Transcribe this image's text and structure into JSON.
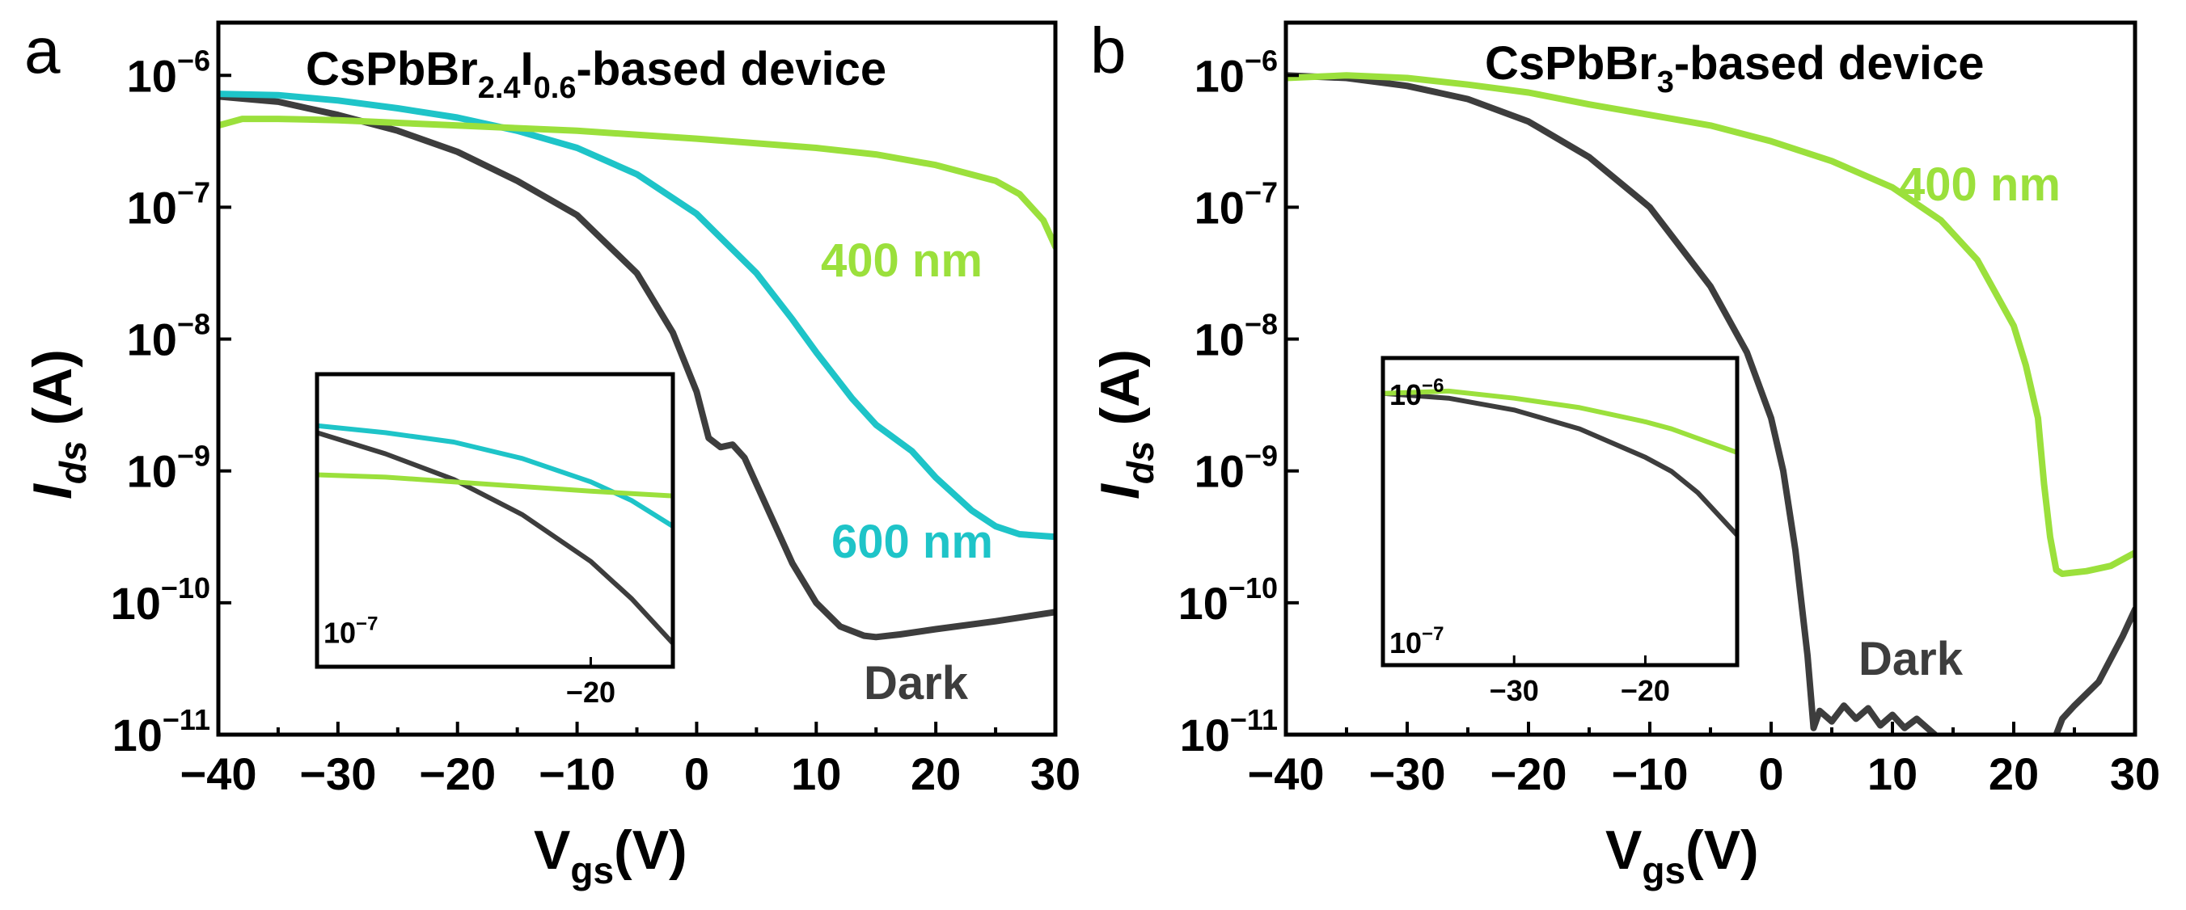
{
  "chart_data": [
    {
      "panel": "a",
      "type": "line",
      "title_main": "CsPbBr",
      "title_sub1": "2.4",
      "title_mid": "I",
      "title_sub2": "0.6",
      "title_tail": "-based device",
      "xlabel_main": "V",
      "xlabel_sub": "gs",
      "xlabel_tail": "(V)",
      "ylabel_main": "I",
      "ylabel_sub": "ds",
      "ylabel_tail": " (A)",
      "xlim": [
        -40,
        30
      ],
      "ylim_log10": [
        -11,
        -5.6
      ],
      "x_ticks": [
        "−40",
        "−30",
        "−20",
        "−10",
        "0",
        "10",
        "20",
        "30"
      ],
      "y_ticks": [
        "10",
        "10",
        "10",
        "10",
        "10",
        "10"
      ],
      "y_tick_exps": [
        "−6",
        "−7",
        "−8",
        "−9",
        "−10",
        "−11"
      ],
      "series": [
        {
          "name": "Dark",
          "label": "Dark",
          "color": "#3d3d3d",
          "x": [
            -40,
            -35,
            -30,
            -25,
            -20,
            -15,
            -10,
            -5,
            -2,
            0,
            1,
            2,
            3,
            4,
            6,
            8,
            10,
            12,
            14,
            15,
            17,
            20,
            25,
            30
          ],
          "log10y": [
            -6.16,
            -6.2,
            -6.3,
            -6.42,
            -6.58,
            -6.8,
            -7.06,
            -7.5,
            -7.95,
            -8.4,
            -8.75,
            -8.82,
            -8.8,
            -8.9,
            -9.3,
            -9.7,
            -10.0,
            -10.18,
            -10.25,
            -10.26,
            -10.24,
            -10.2,
            -10.14,
            -10.07
          ]
        },
        {
          "name": "600 nm",
          "label": "600 nm",
          "color": "#1ec4c8",
          "x": [
            -40,
            -35,
            -30,
            -25,
            -20,
            -15,
            -10,
            -5,
            0,
            5,
            8,
            10,
            13,
            15,
            18,
            20,
            23,
            25,
            27,
            30
          ],
          "log10y": [
            -6.14,
            -6.15,
            -6.19,
            -6.25,
            -6.32,
            -6.42,
            -6.55,
            -6.75,
            -7.05,
            -7.5,
            -7.85,
            -8.1,
            -8.45,
            -8.65,
            -8.85,
            -9.05,
            -9.3,
            -9.42,
            -9.48,
            -9.5
          ]
        },
        {
          "name": "400 nm",
          "label": "400 nm",
          "color": "#9be03c",
          "x": [
            -40,
            -38,
            -35,
            -30,
            -20,
            -10,
            0,
            10,
            15,
            20,
            25,
            27,
            29,
            30
          ],
          "log10y": [
            -6.38,
            -6.33,
            -6.33,
            -6.34,
            -6.38,
            -6.42,
            -6.48,
            -6.55,
            -6.6,
            -6.68,
            -6.8,
            -6.9,
            -7.1,
            -7.3
          ]
        }
      ],
      "inset": {
        "xlim": [
          -40,
          -14
        ],
        "ylim_log10": [
          -7.15,
          -5.9
        ],
        "x_ticks": [
          "−20"
        ],
        "y_ticks": [
          "10"
        ],
        "y_tick_exps": [
          "−7"
        ],
        "series": [
          {
            "name": "Dark",
            "x": [
              -40,
              -35,
              -30,
              -25,
              -20,
              -17,
              -14
            ],
            "log10y": [
              -6.15,
              -6.24,
              -6.35,
              -6.5,
              -6.7,
              -6.86,
              -7.05
            ]
          },
          {
            "name": "600 nm",
            "x": [
              -40,
              -35,
              -30,
              -25,
              -20,
              -17,
              -14
            ],
            "log10y": [
              -6.12,
              -6.15,
              -6.19,
              -6.26,
              -6.36,
              -6.44,
              -6.55
            ]
          },
          {
            "name": "400 nm",
            "x": [
              -40,
              -35,
              -30,
              -25,
              -20,
              -17,
              -14
            ],
            "log10y": [
              -6.33,
              -6.34,
              -6.36,
              -6.38,
              -6.4,
              -6.41,
              -6.42
            ]
          }
        ]
      }
    },
    {
      "panel": "b",
      "type": "line",
      "title_main": "CsPbBr",
      "title_sub1": "3",
      "title_tail": "-based device",
      "xlabel_main": "V",
      "xlabel_sub": "gs",
      "xlabel_tail": "(V)",
      "ylabel_main": "I",
      "ylabel_sub": "ds",
      "ylabel_tail": " (A)",
      "xlim": [
        -40,
        30
      ],
      "ylim_log10": [
        -11,
        -5.6
      ],
      "x_ticks": [
        "−40",
        "−30",
        "−20",
        "−10",
        "0",
        "10",
        "20",
        "30"
      ],
      "y_ticks": [
        "10",
        "10",
        "10",
        "10",
        "10",
        "10"
      ],
      "y_tick_exps": [
        "−6",
        "−7",
        "−8",
        "−9",
        "−10",
        "−11"
      ],
      "series": [
        {
          "name": "Dark",
          "label": "Dark",
          "color": "#3d3d3d",
          "segments": [
            {
              "x": [
                -40,
                -35,
                -30,
                -25,
                -20,
                -15,
                -10,
                -5,
                -2,
                0,
                1,
                2,
                3,
                3.5,
                4,
                5,
                6,
                7,
                8,
                9,
                10,
                11,
                12,
                13,
                13.5
              ],
              "log10y": [
                -6.0,
                -6.02,
                -6.08,
                -6.18,
                -6.35,
                -6.62,
                -7.0,
                -7.6,
                -8.1,
                -8.6,
                -9.0,
                -9.6,
                -10.4,
                -10.95,
                -10.82,
                -10.9,
                -10.78,
                -10.88,
                -10.8,
                -10.93,
                -10.85,
                -10.95,
                -10.88,
                -10.96,
                -11.0
              ]
            },
            {
              "x": [
                23.5,
                24,
                25,
                27,
                29,
                30
              ],
              "log10y": [
                -11.0,
                -10.88,
                -10.78,
                -10.6,
                -10.25,
                -10.05
              ]
            }
          ]
        },
        {
          "name": "400 nm",
          "label": "400 nm",
          "color": "#9be03c",
          "x": [
            -40,
            -35,
            -30,
            -25,
            -20,
            -15,
            -10,
            -5,
            0,
            5,
            10,
            14,
            17,
            20,
            21,
            22,
            22.5,
            23,
            23.5,
            24,
            26,
            28,
            30
          ],
          "log10y": [
            -6.02,
            -6.0,
            -6.02,
            -6.07,
            -6.13,
            -6.22,
            -6.3,
            -6.38,
            -6.5,
            -6.65,
            -6.85,
            -7.1,
            -7.4,
            -7.9,
            -8.2,
            -8.6,
            -9.1,
            -9.5,
            -9.75,
            -9.78,
            -9.76,
            -9.72,
            -9.62
          ]
        }
      ],
      "inset": {
        "xlim": [
          -40,
          -13
        ],
        "ylim_log10": [
          -7.15,
          -5.85
        ],
        "x_ticks": [
          "−30",
          "−20"
        ],
        "y_ticks": [
          "10",
          "10"
        ],
        "y_tick_exps": [
          "−6",
          "−7"
        ],
        "series": [
          {
            "name": "Dark",
            "x": [
              -40,
              -35,
              -30,
              -25,
              -20,
              -18,
              -16,
              -13
            ],
            "log10y": [
              -6.0,
              -6.02,
              -6.07,
              -6.15,
              -6.27,
              -6.33,
              -6.42,
              -6.6
            ]
          },
          {
            "name": "400 nm",
            "x": [
              -40,
              -35,
              -30,
              -25,
              -20,
              -18,
              -16,
              -13
            ],
            "log10y": [
              -6.0,
              -5.99,
              -6.02,
              -6.06,
              -6.12,
              -6.15,
              -6.19,
              -6.25
            ]
          }
        ]
      }
    }
  ]
}
